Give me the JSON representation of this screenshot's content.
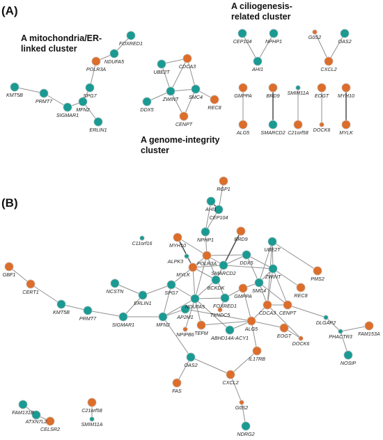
{
  "panels": {
    "a": "(A)",
    "b": "(B)"
  },
  "cluster_titles": {
    "mito": [
      "A mitochondria/ER-",
      "linked cluster"
    ],
    "cilio": [
      "A ciliogenesis-",
      "related cluster"
    ],
    "genome": [
      "A genome-integrity",
      "cluster"
    ]
  },
  "colors": {
    "teal": "#1a9a93",
    "orange": "#dc6d2a",
    "edge": "#8f8f8f",
    "edge_strong": "#555555"
  },
  "nodes": [
    {
      "id": "a_FOXRED1",
      "label": "FOXRED1",
      "color": "teal",
      "size": "l"
    },
    {
      "id": "a_NDUFA5",
      "label": "NDUFA5",
      "color": "teal",
      "size": "l"
    },
    {
      "id": "a_POLR3A",
      "label": "POLR3A",
      "color": "orange",
      "size": "l"
    },
    {
      "id": "a_KMT5B",
      "label": "KMT5B",
      "color": "teal",
      "size": "l"
    },
    {
      "id": "a_PRMT7",
      "label": "PRMT7",
      "color": "teal",
      "size": "l"
    },
    {
      "id": "a_SPG7",
      "label": "SPG7",
      "color": "teal",
      "size": "l"
    },
    {
      "id": "a_SIGMAR1",
      "label": "SIGMAR1",
      "color": "teal",
      "size": "l"
    },
    {
      "id": "a_MFN2",
      "label": "MFN2",
      "color": "teal",
      "size": "l"
    },
    {
      "id": "a_ERLIN1",
      "label": "ERLIN1",
      "color": "teal",
      "size": "l"
    },
    {
      "id": "a_UBE2T",
      "label": "UBE2T",
      "color": "teal",
      "size": "l"
    },
    {
      "id": "a_CDCA3",
      "label": "CDCA3",
      "color": "orange",
      "size": "l"
    },
    {
      "id": "a_ZWINT",
      "label": "ZWINT",
      "color": "teal",
      "size": "l"
    },
    {
      "id": "a_SMC4",
      "label": "SMC4",
      "color": "teal",
      "size": "l"
    },
    {
      "id": "a_DDX5",
      "label": "DDX5",
      "color": "teal",
      "size": "l"
    },
    {
      "id": "a_REC8",
      "label": "REC8",
      "color": "orange",
      "size": "l"
    },
    {
      "id": "a_CENPT",
      "label": "CENPT",
      "color": "orange",
      "size": "l"
    },
    {
      "id": "a_CEP104",
      "label": "CEP104",
      "color": "teal",
      "size": "l"
    },
    {
      "id": "a_NPHP1",
      "label": "NPHP1",
      "color": "teal",
      "size": "l"
    },
    {
      "id": "a_AHI1",
      "label": "AHI1",
      "color": "teal",
      "size": "l"
    },
    {
      "id": "a_G0S2",
      "label": "G0S2",
      "color": "orange",
      "size": "s"
    },
    {
      "id": "a_OAS2",
      "label": "OAS2",
      "color": "teal",
      "size": "l"
    },
    {
      "id": "a_CXCL2",
      "label": "CXCL2",
      "color": "orange",
      "size": "l"
    },
    {
      "id": "a_GMPPA",
      "label": "GMPPA",
      "color": "orange",
      "size": "l"
    },
    {
      "id": "a_BRD9",
      "label": "BRD9",
      "color": "orange",
      "size": "l"
    },
    {
      "id": "a_SMIM11A",
      "label": "SMIM11A",
      "color": "teal",
      "size": "s"
    },
    {
      "id": "a_EOGT",
      "label": "EOGT",
      "color": "orange",
      "size": "l"
    },
    {
      "id": "a_MYH10",
      "label": "MYH10",
      "color": "orange",
      "size": "l"
    },
    {
      "id": "a_ALG5",
      "label": "ALG5",
      "color": "orange",
      "size": "l"
    },
    {
      "id": "a_SMARCD2",
      "label": "SMARCD2",
      "color": "teal",
      "size": "l"
    },
    {
      "id": "a_C21orf58",
      "label": "C21orf58",
      "color": "orange",
      "size": "l"
    },
    {
      "id": "a_DOCK6",
      "label": "DOCK6",
      "color": "orange",
      "size": "s"
    },
    {
      "id": "a_MYLK",
      "label": "MYLK",
      "color": "orange",
      "size": "l"
    },
    {
      "id": "b_RGP1",
      "label": "RGP1",
      "color": "orange",
      "size": "l"
    },
    {
      "id": "b_AHI1",
      "label": "AHI1",
      "color": "teal",
      "size": "l"
    },
    {
      "id": "b_CEP104",
      "label": "CEP104",
      "color": "teal",
      "size": "l"
    },
    {
      "id": "b_BRD9",
      "label": "BRD9",
      "color": "orange",
      "size": "l"
    },
    {
      "id": "b_NPHP1",
      "label": "NPHP1",
      "color": "teal",
      "size": "l"
    },
    {
      "id": "b_C11orf16",
      "label": "C11orf16",
      "color": "teal",
      "size": "s"
    },
    {
      "id": "b_MYH10",
      "label": "MYH10",
      "color": "orange",
      "size": "l"
    },
    {
      "id": "b_POLR3A",
      "label": "POLR3A",
      "color": "orange",
      "size": "l"
    },
    {
      "id": "b_DDX5",
      "label": "DDX5",
      "color": "teal",
      "size": "l"
    },
    {
      "id": "b_UBE2T",
      "label": "UBE2T",
      "color": "teal",
      "size": "l"
    },
    {
      "id": "b_ALPK3",
      "label": "ALPK3",
      "color": "teal",
      "size": "s"
    },
    {
      "id": "b_MYLK",
      "label": "MYLK",
      "color": "orange",
      "size": "l"
    },
    {
      "id": "b_SMARCD2",
      "label": "SMARCD2",
      "color": "teal",
      "size": "l"
    },
    {
      "id": "b_ZWINT",
      "label": "ZWINT",
      "color": "teal",
      "size": "l"
    },
    {
      "id": "b_PMS2",
      "label": "PMS2",
      "color": "orange",
      "size": "l"
    },
    {
      "id": "b_GBF1",
      "label": "GBF1",
      "color": "orange",
      "size": "l"
    },
    {
      "id": "b_CERT1",
      "label": "CERT1",
      "color": "orange",
      "size": "l"
    },
    {
      "id": "b_NCSTN",
      "label": "NCSTN",
      "color": "teal",
      "size": "l"
    },
    {
      "id": "b_SPG7",
      "label": "SPG7",
      "color": "teal",
      "size": "l"
    },
    {
      "id": "b_BCKDK",
      "label": "BCKDK",
      "color": "teal",
      "size": "l"
    },
    {
      "id": "b_SMC4",
      "label": "SMC4",
      "color": "teal",
      "size": "l"
    },
    {
      "id": "b_REC8",
      "label": "REC8",
      "color": "orange",
      "size": "l"
    },
    {
      "id": "b_KMT5B",
      "label": "KMT5B",
      "color": "teal",
      "size": "l"
    },
    {
      "id": "b_ERLIN1",
      "label": "ERLIN1",
      "color": "teal",
      "size": "l"
    },
    {
      "id": "b_NDUFA5",
      "label": "NDUFA5",
      "color": "teal",
      "size": "l"
    },
    {
      "id": "b_FOXRED1",
      "label": "FOXRED1",
      "color": "teal",
      "size": "l"
    },
    {
      "id": "b_GMPPA",
      "label": "GMPPA",
      "color": "orange",
      "size": "l"
    },
    {
      "id": "b_CDCA3",
      "label": "CDCA3",
      "color": "orange",
      "size": "l"
    },
    {
      "id": "b_CENPT",
      "label": "CENPT",
      "color": "orange",
      "size": "l"
    },
    {
      "id": "b_DLGAP2",
      "label": "DLGAP2",
      "color": "teal",
      "size": "s"
    },
    {
      "id": "b_PRMT7",
      "label": "PRMT7",
      "color": "teal",
      "size": "l"
    },
    {
      "id": "b_SIGMAR1",
      "label": "SIGMAR1",
      "color": "teal",
      "size": "l"
    },
    {
      "id": "b_MFN2",
      "label": "MFN2",
      "color": "teal",
      "size": "l"
    },
    {
      "id": "b_AP2M1",
      "label": "AP2M1",
      "color": "teal",
      "size": "l"
    },
    {
      "id": "b_TXNDC5",
      "label": "TXNDC5",
      "color": "orange",
      "size": "s"
    },
    {
      "id": "b_NPIPB6",
      "label": "NPIPB6",
      "color": "orange",
      "size": "s"
    },
    {
      "id": "b_TEFM",
      "label": "TEFM",
      "color": "orange",
      "size": "l"
    },
    {
      "id": "b_ABHD14A",
      "label": "ABHD14A-ACY1",
      "color": "teal",
      "size": "l"
    },
    {
      "id": "b_ALG5",
      "label": "ALG5",
      "color": "orange",
      "size": "l"
    },
    {
      "id": "b_PHACTR3",
      "label": "PHACTR3",
      "color": "teal",
      "size": "s"
    },
    {
      "id": "b_FAM153A",
      "label": "FAM153A",
      "color": "orange",
      "size": "l"
    },
    {
      "id": "b_EOGT",
      "label": "EOGT",
      "color": "orange",
      "size": "l"
    },
    {
      "id": "b_DOCK6",
      "label": "DOCK6",
      "color": "orange",
      "size": "s"
    },
    {
      "id": "b_NOSIP",
      "label": "NOSIP",
      "color": "teal",
      "size": "l"
    },
    {
      "id": "b_IL17RB",
      "label": "IL17RB",
      "color": "orange",
      "size": "l"
    },
    {
      "id": "b_OAS2",
      "label": "OAS2",
      "color": "teal",
      "size": "l"
    },
    {
      "id": "b_CXCL2",
      "label": "CXCL2",
      "color": "orange",
      "size": "l"
    },
    {
      "id": "b_FAS",
      "label": "FAS",
      "color": "orange",
      "size": "l"
    },
    {
      "id": "b_G0S2",
      "label": "G0S2",
      "color": "orange",
      "size": "s"
    },
    {
      "id": "b_NDRG2",
      "label": "NDRG2",
      "color": "teal",
      "size": "l"
    },
    {
      "id": "b_FAM131B",
      "label": "FAM131B",
      "color": "teal",
      "size": "l"
    },
    {
      "id": "b_ATXN7L2",
      "label": "ATXN7L2",
      "color": "teal",
      "size": "l"
    },
    {
      "id": "b_CELSR2",
      "label": "CELSR2",
      "color": "orange",
      "size": "l"
    },
    {
      "id": "b_C21orf58",
      "label": "C21orf58",
      "color": "orange",
      "size": "l"
    },
    {
      "id": "b_SMIM11A",
      "label": "SMIM11A",
      "color": "teal",
      "size": "s"
    }
  ],
  "edges": [
    [
      "a_FOXRED1",
      "a_NDUFA5"
    ],
    [
      "a_NDUFA5",
      "a_POLR3A"
    ],
    [
      "a_POLR3A",
      "a_SPG7"
    ],
    [
      "a_SPG7",
      "a_MFN2"
    ],
    [
      "a_MFN2",
      "a_SIGMAR1"
    ],
    [
      "a_SIGMAR1",
      "a_PRMT7"
    ],
    [
      "a_PRMT7",
      "a_KMT5B"
    ],
    [
      "a_MFN2",
      "a_ERLIN1"
    ],
    [
      "a_UBE2T",
      "a_CDCA3"
    ],
    [
      "a_UBE2T",
      "a_ZWINT"
    ],
    [
      "a_CDCA3",
      "a_ZWINT"
    ],
    [
      "a_CDCA3",
      "a_SMC4"
    ],
    [
      "a_ZWINT",
      "a_SMC4"
    ],
    [
      "a_ZWINT",
      "a_DDX5"
    ],
    [
      "a_ZWINT",
      "a_CENPT"
    ],
    [
      "a_SMC4",
      "a_REC8"
    ],
    [
      "a_SMC4",
      "a_CENPT"
    ],
    [
      "a_CEP104",
      "a_AHI1"
    ],
    [
      "a_NPHP1",
      "a_AHI1"
    ],
    [
      "a_OAS2",
      "a_CXCL2"
    ],
    [
      "a_G0S2",
      "a_CXCL2"
    ],
    [
      "a_GMPPA",
      "a_ALG5"
    ],
    [
      "a_BRD9",
      "a_SMARCD2",
      "thick"
    ],
    [
      "a_SMIM11A",
      "a_C21orf58"
    ],
    [
      "a_EOGT",
      "a_DOCK6"
    ],
    [
      "a_MYH10",
      "a_MYLK",
      "thick"
    ],
    [
      "b_RGP1",
      "b_CEP104"
    ],
    [
      "b_AHI1",
      "b_CEP104",
      "thick"
    ],
    [
      "b_AHI1",
      "b_NPHP1"
    ],
    [
      "b_CEP104",
      "b_NPHP1"
    ],
    [
      "b_NPHP1",
      "b_POLR3A"
    ],
    [
      "b_MYH10",
      "b_MYLK",
      "thick"
    ],
    [
      "b_MYH10",
      "b_POLR3A"
    ],
    [
      "b_ALPK3",
      "b_MYLK"
    ],
    [
      "b_MYLK",
      "b_POLR3A"
    ],
    [
      "b_MYLK",
      "b_SMARCD2"
    ],
    [
      "b_MYLK",
      "b_BCKDK"
    ],
    [
      "b_MYLK",
      "b_SPG7"
    ],
    [
      "b_MYLK",
      "b_NDUFA5"
    ],
    [
      "b_POLR3A",
      "b_SMARCD2"
    ],
    [
      "b_POLR3A",
      "b_NDUFA5"
    ],
    [
      "b_POLR3A",
      "b_FOXRED1"
    ],
    [
      "b_POLR3A",
      "b_DDX5"
    ],
    [
      "b_BRD9",
      "b_SMARCD2",
      "thick"
    ],
    [
      "b_SMARCD2",
      "b_DDX5"
    ],
    [
      "b_SMARCD2",
      "b_BCKDK"
    ],
    [
      "b_SMARCD2",
      "b_ZWINT"
    ],
    [
      "b_DDX5",
      "b_ZWINT"
    ],
    [
      "b_DDX5",
      "b_SMC4"
    ],
    [
      "b_UBE2T",
      "b_ZWINT"
    ],
    [
      "b_UBE2T",
      "b_SMC4"
    ],
    [
      "b_UBE2T",
      "b_CDCA3"
    ],
    [
      "b_UBE2T",
      "b_PMS2"
    ],
    [
      "b_ZWINT",
      "b_SMC4"
    ],
    [
      "b_ZWINT",
      "b_CDCA3"
    ],
    [
      "b_ZWINT",
      "b_CENPT"
    ],
    [
      "b_ZWINT",
      "b_REC8"
    ],
    [
      "b_SMC4",
      "b_CDCA3"
    ],
    [
      "b_SMC4",
      "b_CENPT"
    ],
    [
      "b_SMC4",
      "b_GMPPA"
    ],
    [
      "b_CDCA3",
      "b_CENPT"
    ],
    [
      "b_CENPT",
      "b_DLGAP2"
    ],
    [
      "b_DLGAP2",
      "b_PHACTR3"
    ],
    [
      "b_PHACTR3",
      "b_FAM153A"
    ],
    [
      "b_PHACTR3",
      "b_NOSIP"
    ],
    [
      "b_GBF1",
      "b_CERT1"
    ],
    [
      "b_CERT1",
      "b_KMT5B"
    ],
    [
      "b_KMT5B",
      "b_PRMT7"
    ],
    [
      "b_PRMT7",
      "b_SIGMAR1"
    ],
    [
      "b_SIGMAR1",
      "b_MFN2"
    ],
    [
      "b_SIGMAR1",
      "b_ERLIN1"
    ],
    [
      "b_NCSTN",
      "b_ERLIN1"
    ],
    [
      "b_ERLIN1",
      "b_SPG7"
    ],
    [
      "b_SPG7",
      "b_MFN2"
    ],
    [
      "b_SPG7",
      "b_NDUFA5"
    ],
    [
      "b_MFN2",
      "b_AP2M1"
    ],
    [
      "b_MFN2",
      "b_NDUFA5"
    ],
    [
      "b_MFN2",
      "b_OAS2"
    ],
    [
      "b_NDUFA5",
      "b_FOXRED1"
    ],
    [
      "b_NDUFA5",
      "b_BCKDK"
    ],
    [
      "b_NDUFA5",
      "b_TEFM"
    ],
    [
      "b_NDUFA5",
      "b_ABHD14A"
    ],
    [
      "b_NDUFA5",
      "b_NPIPB6"
    ],
    [
      "b_AP2M1",
      "b_ALG5"
    ],
    [
      "b_FOXRED1",
      "b_TXNDC5"
    ],
    [
      "b_FOXRED1",
      "b_GMPPA"
    ],
    [
      "b_GMPPA",
      "b_ALG5"
    ],
    [
      "b_ALG5",
      "b_ABHD14A"
    ],
    [
      "b_ALG5",
      "b_TEFM"
    ],
    [
      "b_ALG5",
      "b_CDCA3"
    ],
    [
      "b_ALG5",
      "b_IL17RB"
    ],
    [
      "b_ALG5",
      "b_EOGT"
    ],
    [
      "b_EOGT",
      "b_DOCK6"
    ],
    [
      "b_CDCA3",
      "b_DOCK6"
    ],
    [
      "b_IL17RB",
      "b_CXCL2"
    ],
    [
      "b_OAS2",
      "b_CXCL2"
    ],
    [
      "b_OAS2",
      "b_FAS"
    ],
    [
      "b_CXCL2",
      "b_G0S2"
    ],
    [
      "b_G0S2",
      "b_NDRG2"
    ],
    [
      "b_FAM131B",
      "b_ATXN7L2"
    ],
    [
      "b_ATXN7L2",
      "b_CELSR2"
    ],
    [
      "b_C21orf58",
      "b_SMIM11A"
    ]
  ]
}
